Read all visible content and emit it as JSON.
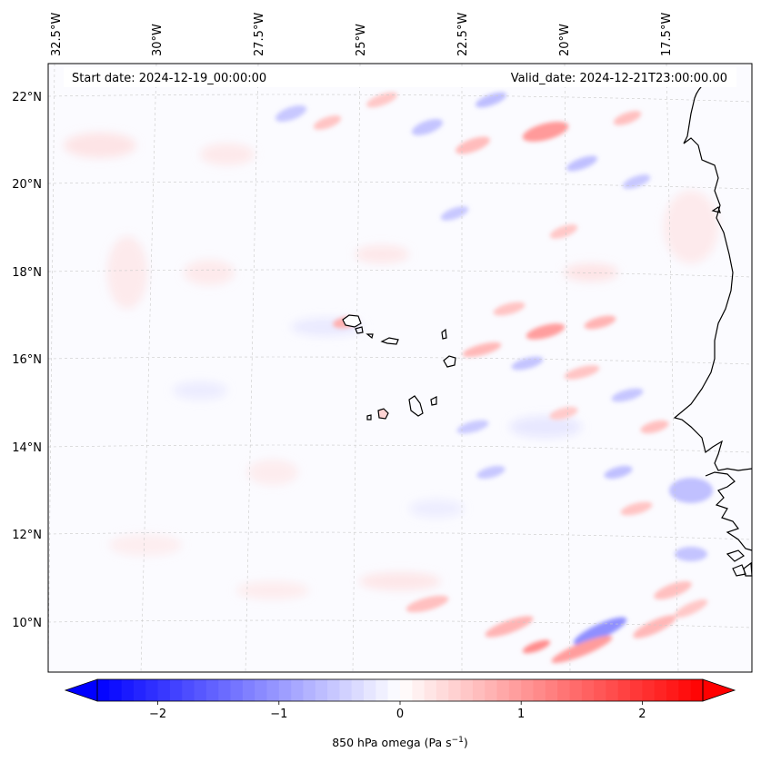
{
  "map": {
    "header": {
      "start_date": "Start date: 2024-12-19_00:00:00",
      "valid_date": "Valid_date: 2024-12-21T23:00:00.00"
    },
    "lon_labels": [
      "32.5°W",
      "30°W",
      "27.5°W",
      "25°W",
      "22.5°W",
      "20°W",
      "17.5°W"
    ],
    "lat_labels": [
      "22°N",
      "20°N",
      "18°N",
      "16°N",
      "14°N",
      "12°N",
      "10°N"
    ],
    "gridlines": "dashed, light grey",
    "coastlines": "black",
    "field": {
      "variable": "850 hPa omega",
      "colormap": "bwr",
      "range": [
        -2.5,
        2.5
      ],
      "colors": {
        "negative": "#0000ff",
        "zero": "#ffffff",
        "positive": "#ff0000"
      }
    }
  },
  "colorbar": {
    "ticks": [
      "−2",
      "−1",
      "0",
      "1",
      "2"
    ],
    "tick_values": [
      -2,
      -1,
      0,
      1,
      2
    ],
    "range": [
      -2.5,
      2.5
    ],
    "extend": "both",
    "label_main": "850 hPa omega (Pa s",
    "label_sup": "−1",
    "label_end": ")"
  }
}
